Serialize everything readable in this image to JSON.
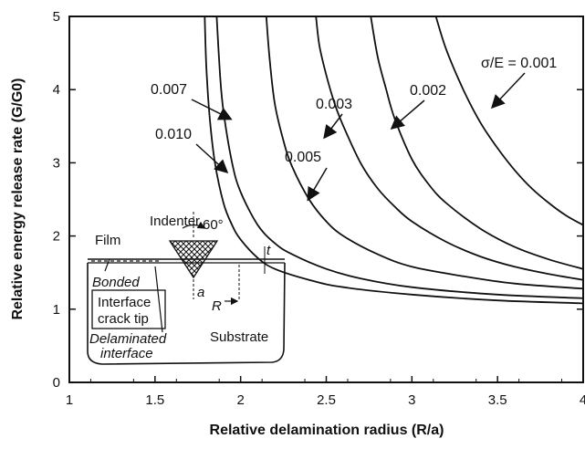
{
  "chart_data": {
    "type": "line",
    "title": "",
    "xlabel": "Relative delamination radius (R/a)",
    "ylabel": "Relative energy release rate (G/G0)",
    "xlim": [
      1,
      4
    ],
    "ylim": [
      0,
      5
    ],
    "x_ticks": [
      "1",
      "1.5",
      "2",
      "2.5",
      "3",
      "3.5",
      "4"
    ],
    "y_ticks": [
      "0",
      "1",
      "2",
      "3",
      "4",
      "5"
    ],
    "x_tick_values": [
      1,
      1.5,
      2,
      2.5,
      3,
      3.5,
      4
    ],
    "y_tick_values": [
      0,
      1,
      2,
      3,
      4,
      5
    ],
    "grid": false,
    "series": [
      {
        "name": "0.010",
        "x": [
          1.79,
          1.8,
          1.82,
          1.85,
          1.9,
          1.95,
          2.0,
          2.1,
          2.2,
          2.4,
          2.6,
          3.0,
          3.5,
          4.0
        ],
        "y": [
          5.0,
          4.3,
          3.6,
          3.0,
          2.45,
          2.15,
          1.95,
          1.7,
          1.55,
          1.4,
          1.3,
          1.2,
          1.12,
          1.08
        ]
      },
      {
        "name": "0.007",
        "x": [
          1.86,
          1.88,
          1.9,
          1.95,
          2.0,
          2.1,
          2.2,
          2.3,
          2.5,
          2.7,
          3.0,
          3.5,
          4.0
        ],
        "y": [
          5.0,
          4.2,
          3.7,
          3.0,
          2.6,
          2.15,
          1.9,
          1.75,
          1.55,
          1.42,
          1.3,
          1.2,
          1.15
        ]
      },
      {
        "name": "0.005",
        "x": [
          2.15,
          2.17,
          2.2,
          2.25,
          2.3,
          2.4,
          2.5,
          2.6,
          2.8,
          3.0,
          3.3,
          3.6,
          4.0
        ],
        "y": [
          5.0,
          4.4,
          3.8,
          3.3,
          2.95,
          2.5,
          2.2,
          2.0,
          1.75,
          1.58,
          1.45,
          1.35,
          1.28
        ]
      },
      {
        "name": "0.003",
        "x": [
          2.44,
          2.46,
          2.5,
          2.55,
          2.6,
          2.7,
          2.8,
          2.9,
          3.0,
          3.2,
          3.4,
          3.6,
          3.8,
          4.0
        ],
        "y": [
          5.0,
          4.6,
          4.2,
          3.8,
          3.5,
          3.0,
          2.65,
          2.4,
          2.2,
          1.92,
          1.72,
          1.58,
          1.48,
          1.4
        ]
      },
      {
        "name": "0.002",
        "x": [
          2.76,
          2.8,
          2.85,
          2.9,
          3.0,
          3.1,
          3.2,
          3.4,
          3.6,
          3.8,
          4.0
        ],
        "y": [
          5.0,
          4.45,
          4.0,
          3.6,
          3.05,
          2.7,
          2.45,
          2.1,
          1.85,
          1.68,
          1.55
        ]
      },
      {
        "name": "σ/E = 0.001",
        "x": [
          3.14,
          3.2,
          3.3,
          3.4,
          3.5,
          3.6,
          3.7,
          3.8,
          3.9,
          4.0
        ],
        "y": [
          5.0,
          4.55,
          4.0,
          3.55,
          3.2,
          2.9,
          2.65,
          2.45,
          2.28,
          2.15
        ]
      }
    ],
    "annotations": [
      {
        "text": "σ/E = 0.001",
        "series": "σ/E = 0.001"
      },
      {
        "text": "0.002",
        "series": "0.002"
      },
      {
        "text": "0.003",
        "series": "0.003"
      },
      {
        "text": "0.005",
        "series": "0.005"
      },
      {
        "text": "0.007",
        "series": "0.007"
      },
      {
        "text": "0.010",
        "series": "0.010"
      }
    ],
    "inset": {
      "labels": {
        "indenter": "Indenter",
        "angle": "60°",
        "film": "Film",
        "bonded": "Bonded",
        "interface_crack_tip": [
          "Interface",
          "crack tip"
        ],
        "delaminated_interface": [
          "Delaminated",
          "interface"
        ],
        "substrate": "Substrate",
        "a": "a",
        "R": "R",
        "t": "t"
      }
    }
  }
}
